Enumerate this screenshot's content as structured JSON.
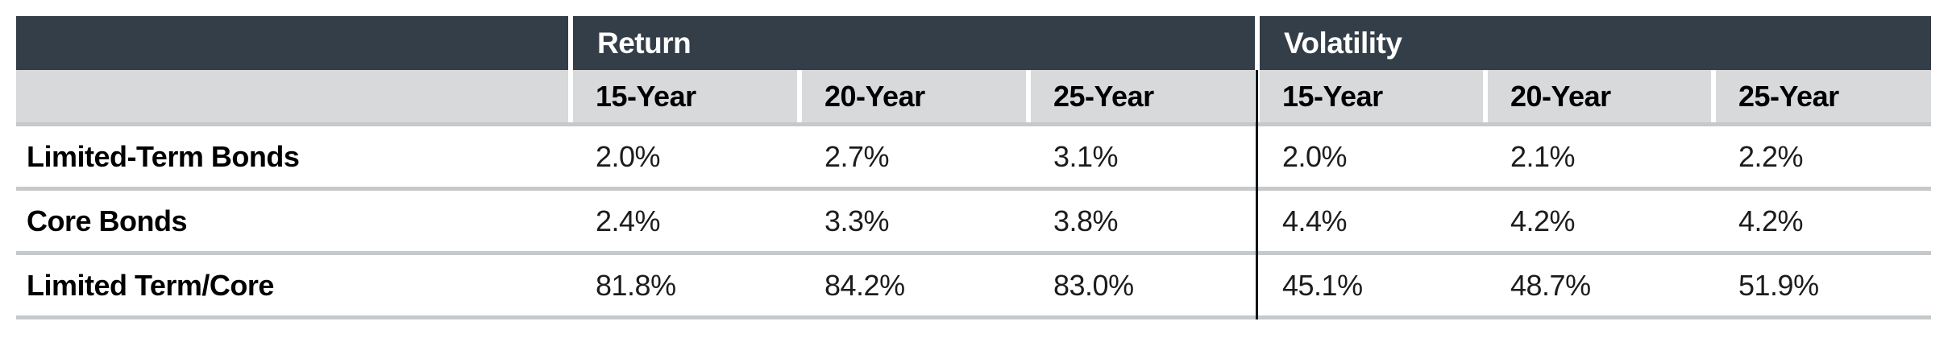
{
  "table": {
    "group_headers": [
      "Return",
      "Volatility"
    ],
    "subheaders": [
      "15-Year",
      "20-Year",
      "25-Year",
      "15-Year",
      "20-Year",
      "25-Year"
    ],
    "rows": [
      {
        "label": "Limited-Term Bonds",
        "values": [
          "2.0%",
          "2.7%",
          "3.1%",
          "2.0%",
          "2.1%",
          "2.2%"
        ]
      },
      {
        "label": "Core Bonds",
        "values": [
          "2.4%",
          "3.3%",
          "3.8%",
          "4.4%",
          "4.2%",
          "4.2%"
        ]
      },
      {
        "label": "Limited Term/Core",
        "values": [
          "81.8%",
          "84.2%",
          "83.0%",
          "45.1%",
          "48.7%",
          "51.9%"
        ]
      }
    ],
    "colors": {
      "header_bg": "#343e48",
      "header_text": "#ffffff",
      "subheader_bg": "#d8d9da",
      "row_separator": "#c6c9cb",
      "section_divider": "#101418",
      "body_text": "#1c1c1c"
    }
  },
  "chart_data": {
    "type": "table",
    "title": "",
    "column_groups": [
      {
        "label": "Return",
        "columns": [
          "15-Year",
          "20-Year",
          "25-Year"
        ]
      },
      {
        "label": "Volatility",
        "columns": [
          "15-Year",
          "20-Year",
          "25-Year"
        ]
      }
    ],
    "rows": [
      {
        "label": "Limited-Term Bonds",
        "return_pct": {
          "15_year": 2.0,
          "20_year": 2.7,
          "25_year": 3.1
        },
        "volatility_pct": {
          "15_year": 2.0,
          "20_year": 2.1,
          "25_year": 2.2
        }
      },
      {
        "label": "Core Bonds",
        "return_pct": {
          "15_year": 2.4,
          "20_year": 3.3,
          "25_year": 3.8
        },
        "volatility_pct": {
          "15_year": 4.4,
          "20_year": 4.2,
          "25_year": 4.2
        }
      },
      {
        "label": "Limited Term/Core",
        "return_pct": {
          "15_year": 81.8,
          "20_year": 84.2,
          "25_year": 83.0
        },
        "volatility_pct": {
          "15_year": 45.1,
          "20_year": 48.7,
          "25_year": 51.9
        }
      }
    ]
  }
}
